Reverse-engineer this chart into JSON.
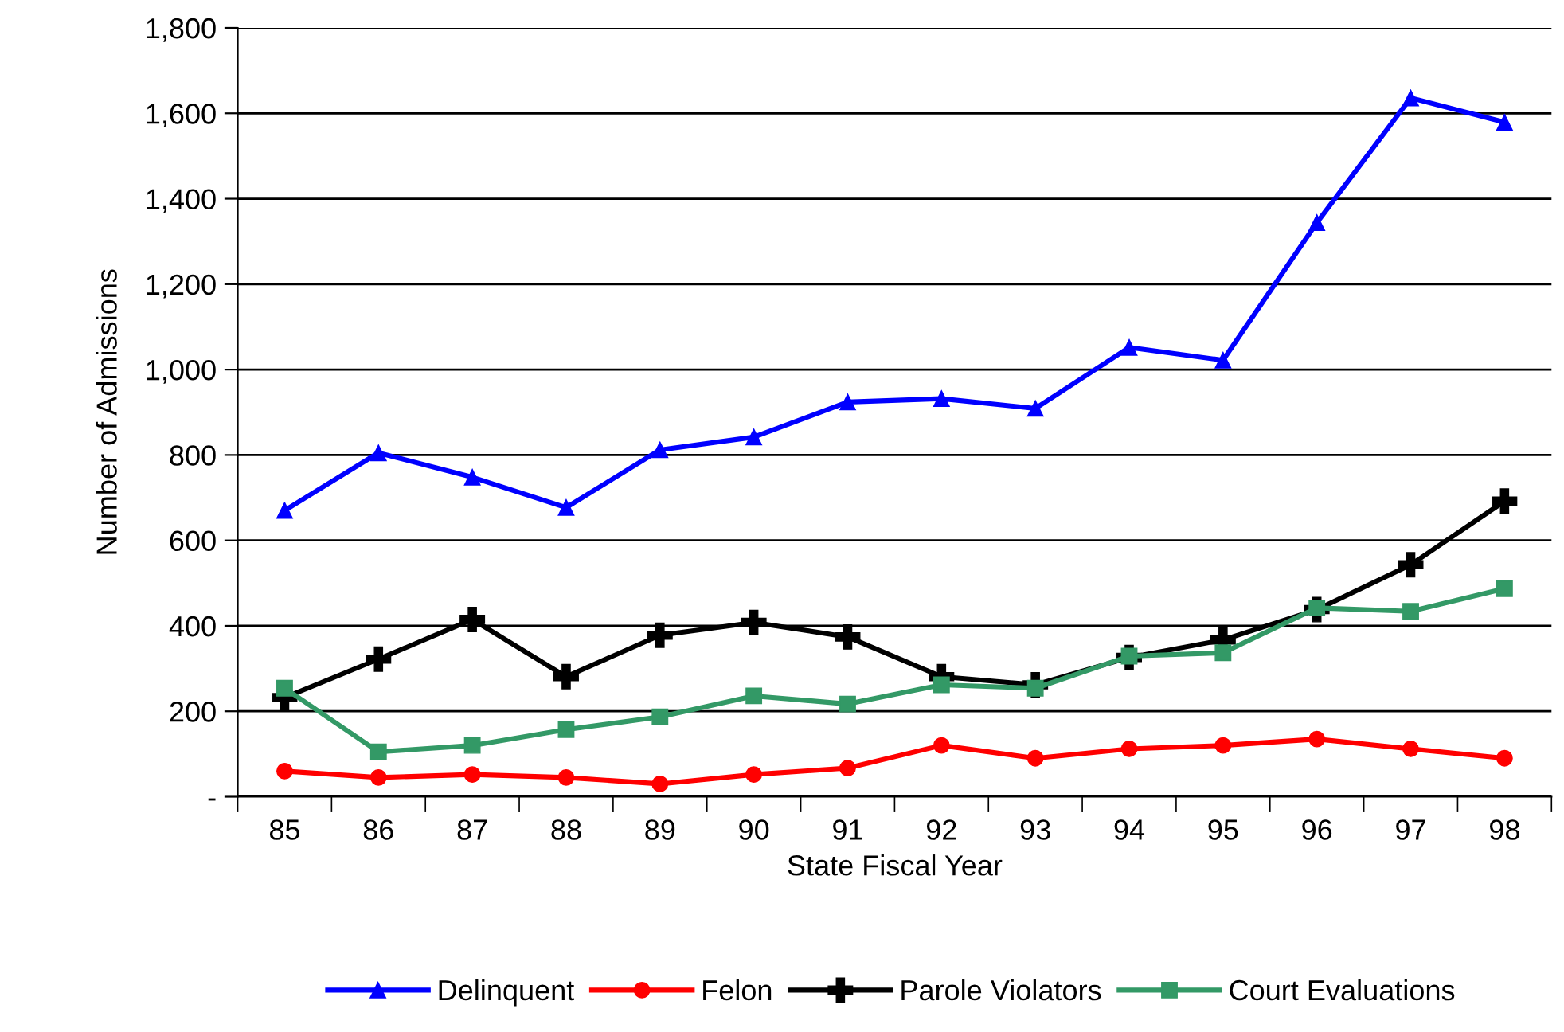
{
  "chart_data": {
    "type": "line",
    "xlabel": "State Fiscal Year",
    "ylabel": "Number of Admissions",
    "categories": [
      "85",
      "86",
      "87",
      "88",
      "89",
      "90",
      "91",
      "92",
      "93",
      "94",
      "95",
      "96",
      "97",
      "98"
    ],
    "series": [
      {
        "name": "Delinquent",
        "color": "#0000ff",
        "marker": "triangle",
        "values": [
          670,
          805,
          748,
          677,
          812,
          842,
          924,
          932,
          909,
          1052,
          1022,
          1344,
          1636,
          1579
        ]
      },
      {
        "name": "Felon",
        "color": "#ff0000",
        "marker": "circle",
        "values": [
          60,
          45,
          52,
          45,
          30,
          52,
          67,
          120,
          90,
          112,
          120,
          135,
          112,
          90
        ]
      },
      {
        "name": "Parole Violators",
        "color": "#000000",
        "marker": "cross",
        "values": [
          232,
          322,
          415,
          281,
          378,
          408,
          374,
          281,
          262,
          326,
          367,
          438,
          543,
          692
        ]
      },
      {
        "name": "Court Evaluations",
        "color": "#339966",
        "marker": "square",
        "values": [
          254,
          105,
          120,
          157,
          187,
          236,
          217,
          262,
          254,
          329,
          337,
          442,
          434,
          487
        ]
      }
    ],
    "ylim": [
      0,
      1800
    ],
    "yticks": [
      {
        "value": 0,
        "label": "-"
      },
      {
        "value": 200,
        "label": "200"
      },
      {
        "value": 400,
        "label": "400"
      },
      {
        "value": 600,
        "label": "600"
      },
      {
        "value": 800,
        "label": "800"
      },
      {
        "value": 1000,
        "label": "1,000"
      },
      {
        "value": 1200,
        "label": "1,200"
      },
      {
        "value": 1400,
        "label": "1,400"
      },
      {
        "value": 1600,
        "label": "1,600"
      },
      {
        "value": 1800,
        "label": "1,800"
      }
    ],
    "grid": "y",
    "legend": "bottom",
    "line_style": "solid"
  }
}
